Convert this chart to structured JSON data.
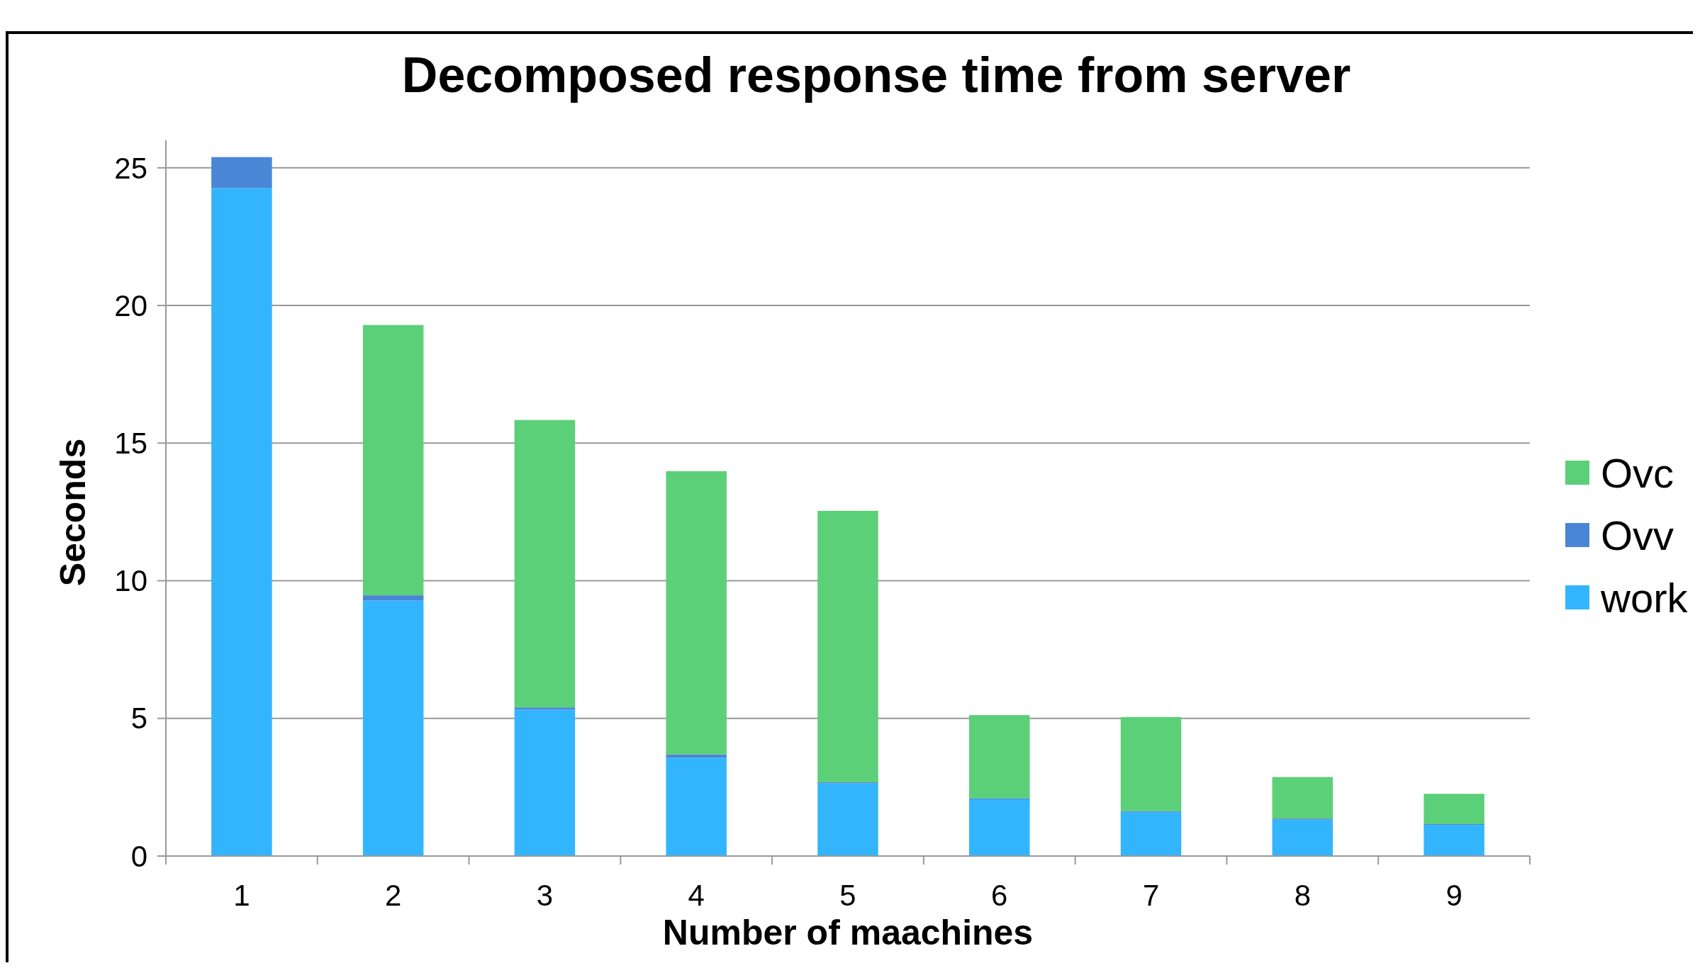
{
  "chart_data": {
    "type": "bar",
    "title": "Decomposed response time from server",
    "xlabel": "Number of maachines",
    "ylabel": "Seconds",
    "categories": [
      "1",
      "2",
      "3",
      "4",
      "5",
      "6",
      "7",
      "8",
      "9"
    ],
    "stacked": true,
    "series": [
      {
        "name": "work",
        "color": "#33b5fd",
        "values": [
          24.26,
          9.28,
          5.32,
          3.57,
          2.64,
          2.06,
          1.59,
          1.32,
          1.13
        ]
      },
      {
        "name": "Ovv",
        "color": "#4a86d6",
        "values": [
          1.13,
          0.19,
          0.08,
          0.12,
          0.04,
          0.04,
          0.04,
          0.04,
          0.03
        ]
      },
      {
        "name": "Ovc",
        "color": "#5ccf79",
        "values": [
          0,
          9.82,
          10.44,
          10.29,
          9.86,
          3.02,
          3.42,
          1.51,
          1.1
        ]
      }
    ],
    "ylim": [
      0,
      26
    ],
    "yticks": [
      0,
      5,
      10,
      15,
      20,
      25
    ],
    "grid": "y",
    "legend": "right"
  }
}
